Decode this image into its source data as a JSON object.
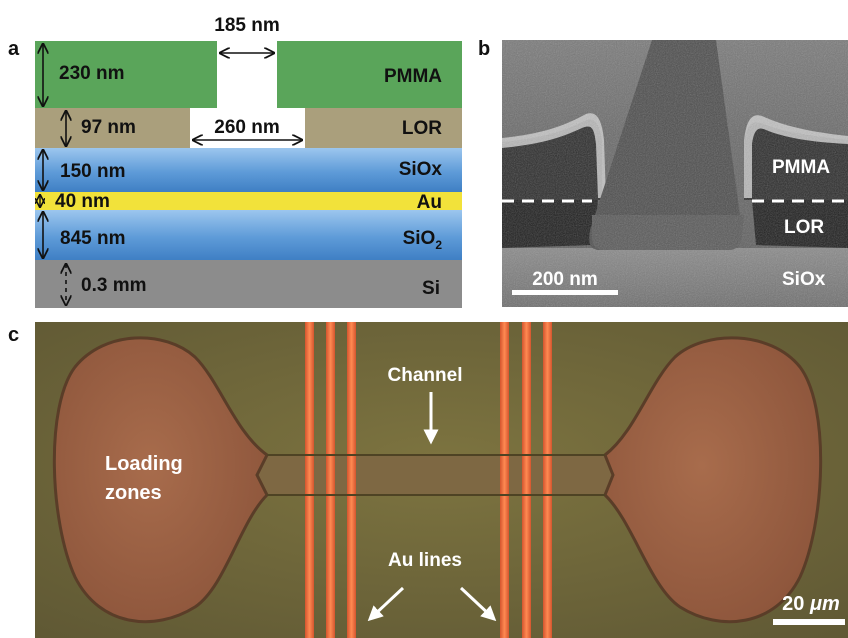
{
  "panels": {
    "a": {
      "label": "a",
      "dims": {
        "top_gap": "185 nm",
        "pmma": "230 nm",
        "lor": "97 nm",
        "lor_gap": "260 nm",
        "siox": "150 nm",
        "au": "40 nm",
        "sio2": "845 nm",
        "si": "0.3 mm"
      },
      "layers": {
        "pmma": "PMMA",
        "lor": "LOR",
        "siox": "SiOx",
        "au": "Au",
        "sio2_base": "SiO",
        "sio2_sub": "2",
        "si": "Si"
      },
      "colors": {
        "pmma": "#5aa55a",
        "lor": "#aa9f7c",
        "siox": "#6fa8dc",
        "au": "#f2e23a",
        "si": "#8c8c8c"
      }
    },
    "b": {
      "label": "b",
      "layers": {
        "pmma": "PMMA",
        "lor": "LOR",
        "siox": "SiOx"
      },
      "scalebar": "200 nm"
    },
    "c": {
      "label": "c",
      "annotations": {
        "channel": "Channel",
        "loading_line1": "Loading",
        "loading_line2": "zones",
        "au_lines": "Au lines"
      },
      "scalebar_num": "20 ",
      "scalebar_unit": "μm"
    }
  }
}
